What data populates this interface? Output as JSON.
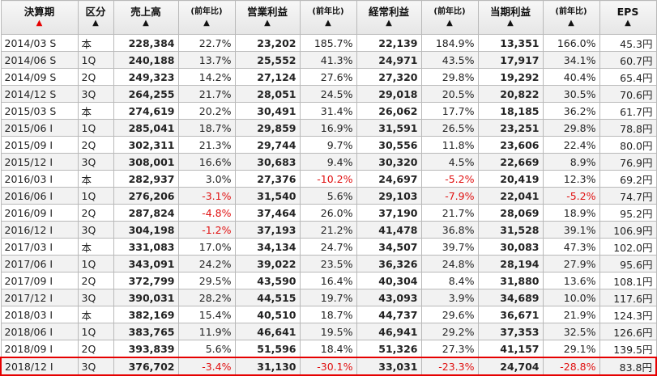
{
  "headers": [
    {
      "label": "決算期",
      "active": true
    },
    {
      "label": "区分",
      "active": false
    },
    {
      "label": "売上高",
      "active": false
    },
    {
      "label": "(前年比)",
      "active": false,
      "small": true
    },
    {
      "label": "営業利益",
      "active": false
    },
    {
      "label": "(前年比)",
      "active": false,
      "small": true
    },
    {
      "label": "経常利益",
      "active": false
    },
    {
      "label": "(前年比)",
      "active": false,
      "small": true
    },
    {
      "label": "当期利益",
      "active": false
    },
    {
      "label": "(前年比)",
      "active": false,
      "small": true
    },
    {
      "label": "EPS",
      "active": false
    }
  ],
  "sort_arrow": "▲",
  "rows": [
    [
      "2014/03 S",
      "本",
      "228,384",
      "22.7%",
      "23,202",
      "185.7%",
      "22,139",
      "184.9%",
      "13,351",
      "166.0%",
      "45.3円"
    ],
    [
      "2014/06 S",
      "1Q",
      "240,188",
      "13.7%",
      "25,552",
      "41.3%",
      "24,971",
      "43.5%",
      "17,917",
      "34.1%",
      "60.7円"
    ],
    [
      "2014/09 S",
      "2Q",
      "249,323",
      "14.2%",
      "27,124",
      "27.6%",
      "27,320",
      "29.8%",
      "19,292",
      "40.4%",
      "65.4円"
    ],
    [
      "2014/12 S",
      "3Q",
      "264,255",
      "21.7%",
      "28,051",
      "24.5%",
      "29,018",
      "20.5%",
      "20,822",
      "30.5%",
      "70.6円"
    ],
    [
      "2015/03 S",
      "本",
      "274,619",
      "20.2%",
      "30,491",
      "31.4%",
      "26,062",
      "17.7%",
      "18,185",
      "36.2%",
      "61.7円"
    ],
    [
      "2015/06 I",
      "1Q",
      "285,041",
      "18.7%",
      "29,859",
      "16.9%",
      "31,591",
      "26.5%",
      "23,251",
      "29.8%",
      "78.8円"
    ],
    [
      "2015/09 I",
      "2Q",
      "302,311",
      "21.3%",
      "29,744",
      "9.7%",
      "30,556",
      "11.8%",
      "23,606",
      "22.4%",
      "80.0円"
    ],
    [
      "2015/12 I",
      "3Q",
      "308,001",
      "16.6%",
      "30,683",
      "9.4%",
      "30,320",
      "4.5%",
      "22,669",
      "8.9%",
      "76.9円"
    ],
    [
      "2016/03 I",
      "本",
      "282,937",
      "3.0%",
      "27,376",
      "-10.2%",
      "24,697",
      "-5.2%",
      "20,419",
      "12.3%",
      "69.2円"
    ],
    [
      "2016/06 I",
      "1Q",
      "276,206",
      "-3.1%",
      "31,540",
      "5.6%",
      "29,103",
      "-7.9%",
      "22,041",
      "-5.2%",
      "74.7円"
    ],
    [
      "2016/09 I",
      "2Q",
      "287,824",
      "-4.8%",
      "37,464",
      "26.0%",
      "37,190",
      "21.7%",
      "28,069",
      "18.9%",
      "95.2円"
    ],
    [
      "2016/12 I",
      "3Q",
      "304,198",
      "-1.2%",
      "37,193",
      "21.2%",
      "41,478",
      "36.8%",
      "31,528",
      "39.1%",
      "106.9円"
    ],
    [
      "2017/03 I",
      "本",
      "331,083",
      "17.0%",
      "34,134",
      "24.7%",
      "34,507",
      "39.7%",
      "30,083",
      "47.3%",
      "102.0円"
    ],
    [
      "2017/06 I",
      "1Q",
      "343,091",
      "24.2%",
      "39,022",
      "23.5%",
      "36,326",
      "24.8%",
      "28,194",
      "27.9%",
      "95.6円"
    ],
    [
      "2017/09 I",
      "2Q",
      "372,799",
      "29.5%",
      "43,590",
      "16.4%",
      "40,304",
      "8.4%",
      "31,880",
      "13.6%",
      "108.1円"
    ],
    [
      "2017/12 I",
      "3Q",
      "390,031",
      "28.2%",
      "44,515",
      "19.7%",
      "43,093",
      "3.9%",
      "34,689",
      "10.0%",
      "117.6円"
    ],
    [
      "2018/03 I",
      "本",
      "382,169",
      "15.4%",
      "40,510",
      "18.7%",
      "44,737",
      "29.6%",
      "36,671",
      "21.9%",
      "124.3円"
    ],
    [
      "2018/06 I",
      "1Q",
      "383,765",
      "11.9%",
      "46,641",
      "19.5%",
      "46,941",
      "29.2%",
      "37,353",
      "32.5%",
      "126.6円"
    ],
    [
      "2018/09 I",
      "2Q",
      "393,839",
      "5.6%",
      "51,596",
      "18.4%",
      "51,326",
      "27.3%",
      "41,157",
      "29.1%",
      "139.5円"
    ],
    [
      "2018/12 I",
      "3Q",
      "376,702",
      "-3.4%",
      "31,130",
      "-30.1%",
      "33,031",
      "-23.3%",
      "24,704",
      "-28.8%",
      "83.8円"
    ]
  ],
  "selected_row_index": 19,
  "colors": {
    "negative": "#e01010",
    "highlight_border": "#e60000",
    "sort_arrow_active": "#e60000"
  }
}
